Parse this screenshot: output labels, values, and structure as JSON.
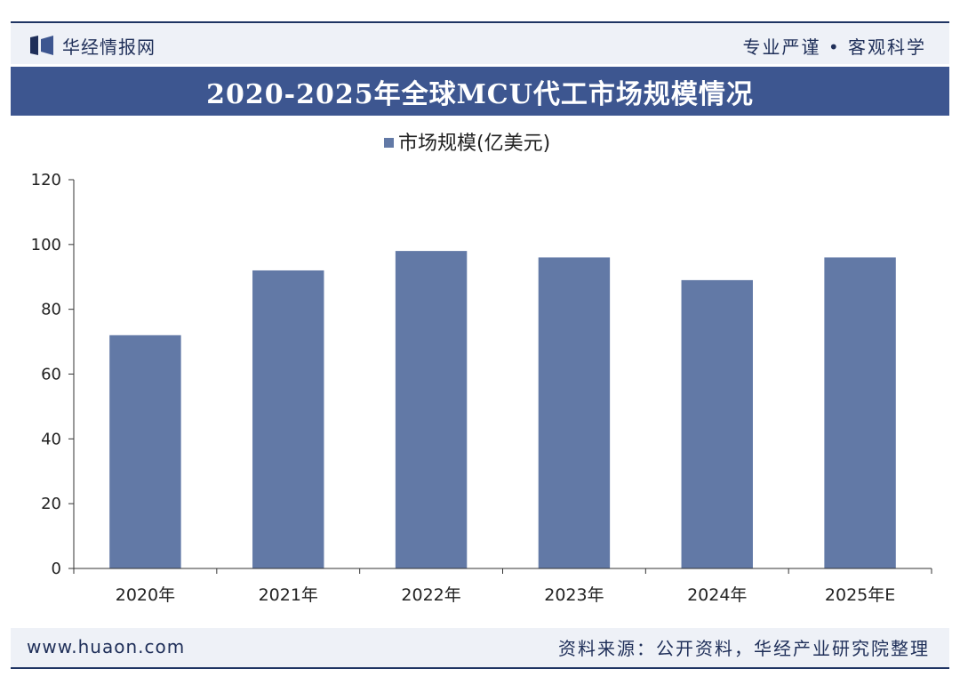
{
  "header": {
    "brand": "华经情报网",
    "slogan": "专业严谨 • 客观科学"
  },
  "chart_data": {
    "type": "bar",
    "title": "2020-2025年全球MCU代工市场规模情况",
    "categories": [
      "2020年",
      "2021年",
      "2022年",
      "2023年",
      "2024年",
      "2025年E"
    ],
    "series": [
      {
        "name": "市场规模(亿美元)",
        "values": [
          72,
          92,
          98,
          96,
          89,
          96
        ]
      }
    ],
    "ylim": [
      0,
      120
    ],
    "yticks": [
      0,
      20,
      40,
      60,
      80,
      100,
      120
    ],
    "yticks_labels": [
      "0",
      "20",
      "40",
      "60",
      "80",
      "100",
      "120"
    ],
    "grid": false,
    "legend": "top-center",
    "bar_color": "#6279a6"
  },
  "footer": {
    "url": "www.huaon.com",
    "source": "资料来源：公开资料，华经产业研究院整理"
  },
  "colors": {
    "title_bar": "#3d5690",
    "band": "#eef1f7",
    "rule": "#1e3463"
  }
}
